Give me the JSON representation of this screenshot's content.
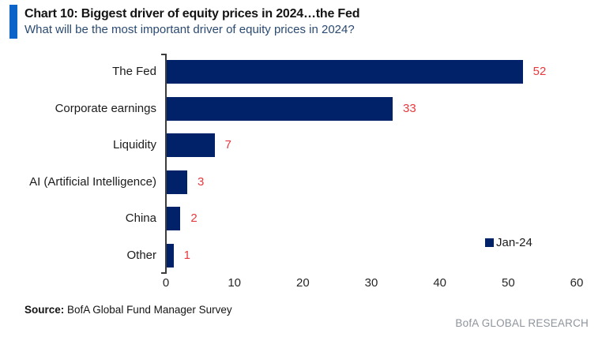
{
  "header": {
    "title": "Chart 10: Biggest driver of equity prices in 2024…the Fed",
    "subtitle": "What will be the most important driver of equity prices in 2024?"
  },
  "chart_data": {
    "type": "bar",
    "orientation": "horizontal",
    "title": "Chart 10: Biggest driver of equity prices in 2024…the Fed",
    "subtitle": "What will be the most important driver of equity prices in 2024?",
    "categories": [
      "The Fed",
      "Corporate earnings",
      "Liquidity",
      "AI (Artificial Intelligence)",
      "China",
      "Other"
    ],
    "values": [
      52,
      33,
      7,
      3,
      2,
      1
    ],
    "series_name": "Jan-24",
    "xlim": [
      0,
      60
    ],
    "x_ticks": [
      0,
      10,
      20,
      30,
      40,
      50,
      60
    ],
    "grid": false,
    "legend_position": "right-inside-bottom",
    "value_labels_shown": true
  },
  "legend": {
    "label": "Jan-24"
  },
  "footer": {
    "source_label": "Source:",
    "source_text": " BofA Global Fund Manager Survey",
    "brand": "BofA GLOBAL RESEARCH"
  },
  "colors": {
    "bar": "#012169",
    "value_label": "#e8393e",
    "accent_bar": "#0d64c8",
    "subtitle": "#2a4a72",
    "axis": "#3d3d3d",
    "brand": "#8e949c"
  }
}
